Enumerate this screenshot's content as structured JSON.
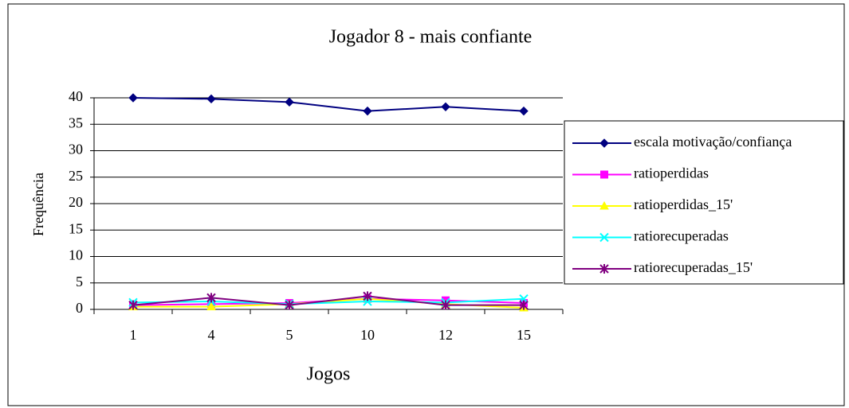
{
  "chart_data": {
    "type": "line",
    "title": "Jogador 8 - mais confiante",
    "x_label": "Jogos",
    "y_label": "Frequência",
    "categories": [
      "1",
      "4",
      "5",
      "10",
      "12",
      "15"
    ],
    "series": [
      {
        "name": "escala motivação/confiança",
        "color": "#000080",
        "marker": "diamond",
        "values": [
          40,
          39.8,
          39.2,
          37.5,
          38.3,
          37.5
        ]
      },
      {
        "name": "ratioperdidas",
        "color": "#ff00ff",
        "marker": "square",
        "values": [
          0.8,
          1.0,
          1.2,
          2.0,
          1.7,
          1.2
        ]
      },
      {
        "name": "ratioperdidas_15'",
        "color": "#ffff00",
        "marker": "triangle",
        "values": [
          0.5,
          0.5,
          1.0,
          2.0,
          1.0,
          0.3
        ]
      },
      {
        "name": "ratiorecuperadas",
        "color": "#00ffff",
        "marker": "x",
        "values": [
          1.3,
          1.5,
          1.0,
          1.5,
          1.3,
          2.0
        ]
      },
      {
        "name": "ratiorecuperadas_15'",
        "color": "#800080",
        "marker": "star",
        "values": [
          0.8,
          2.2,
          0.8,
          2.5,
          0.8,
          0.8
        ]
      }
    ],
    "ylim": [
      0,
      40
    ],
    "yticks": [
      0,
      5,
      10,
      15,
      20,
      25,
      30,
      35,
      40
    ],
    "grid": true,
    "legend": "right"
  }
}
